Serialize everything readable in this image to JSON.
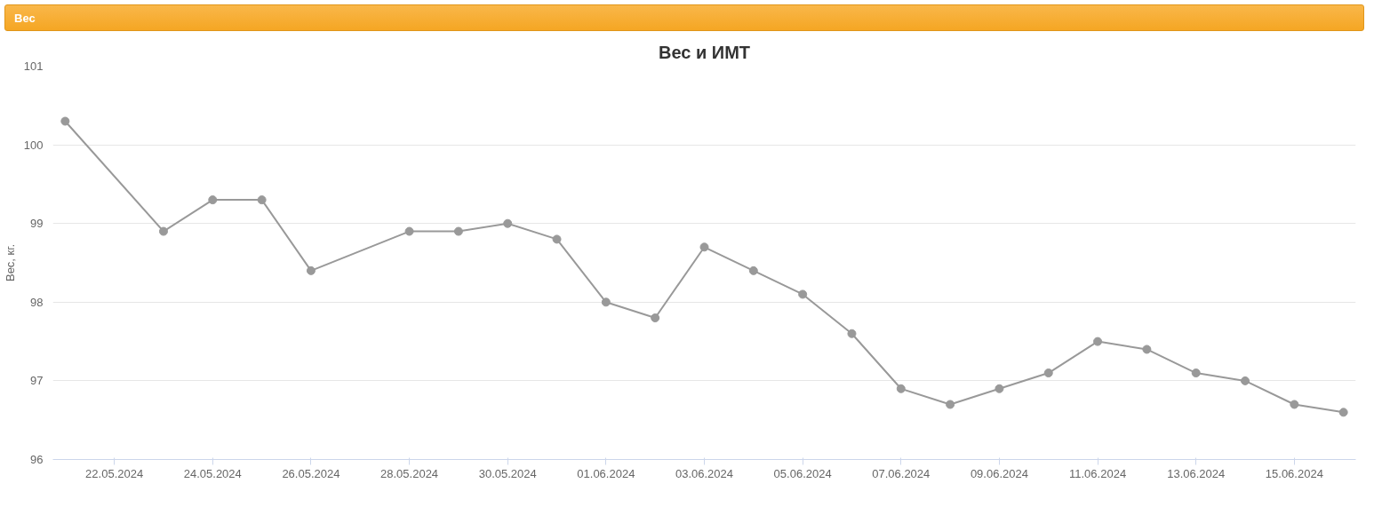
{
  "chart_data": {
    "type": "line",
    "title": "Вес и ИМТ",
    "ylabel": "Вес, кг.",
    "annotations": [
      "Вес"
    ],
    "x": [
      "2024-05-21",
      "2024-05-23",
      "2024-05-24",
      "2024-05-25",
      "2024-05-26",
      "2024-05-28",
      "2024-05-29",
      "2024-05-30",
      "2024-05-31",
      "2024-06-01",
      "2024-06-02",
      "2024-06-03",
      "2024-06-04",
      "2024-06-05",
      "2024-06-06",
      "2024-06-07",
      "2024-06-08",
      "2024-06-09",
      "2024-06-10",
      "2024-06-11",
      "2024-06-12",
      "2024-06-13",
      "2024-06-14",
      "2024-06-15",
      "2024-06-16"
    ],
    "series": [
      {
        "color": "#999999",
        "values": [
          100.3,
          98.9,
          99.3,
          99.3,
          98.4,
          98.9,
          98.9,
          99.0,
          98.8,
          98.0,
          97.8,
          98.7,
          98.4,
          98.1,
          97.6,
          96.9,
          96.7,
          96.9,
          97.1,
          97.5,
          97.4,
          97.1,
          97.0,
          96.7,
          96.6
        ]
      }
    ],
    "xlim": [
      "2024-05-20T18:00",
      "2024-06-16T06:00"
    ],
    "xticks": [
      {
        "value": "2024-05-22",
        "label": "22.05.2024"
      },
      {
        "value": "2024-05-24",
        "label": "24.05.2024"
      },
      {
        "value": "2024-05-26",
        "label": "26.05.2024"
      },
      {
        "value": "2024-05-28",
        "label": "28.05.2024"
      },
      {
        "value": "2024-05-30",
        "label": "30.05.2024"
      },
      {
        "value": "2024-06-01",
        "label": "01.06.2024"
      },
      {
        "value": "2024-06-03",
        "label": "03.06.2024"
      },
      {
        "value": "2024-06-05",
        "label": "05.06.2024"
      },
      {
        "value": "2024-06-07",
        "label": "07.06.2024"
      },
      {
        "value": "2024-06-09",
        "label": "09.06.2024"
      },
      {
        "value": "2024-06-11",
        "label": "11.06.2024"
      },
      {
        "value": "2024-06-13",
        "label": "13.06.2024"
      },
      {
        "value": "2024-06-15",
        "label": "15.06.2024"
      }
    ],
    "ylim": [
      96,
      101
    ],
    "yticks": [
      96,
      97,
      98,
      99,
      100,
      101
    ],
    "grid": "y",
    "marker": "circle",
    "line_style": "solid"
  }
}
